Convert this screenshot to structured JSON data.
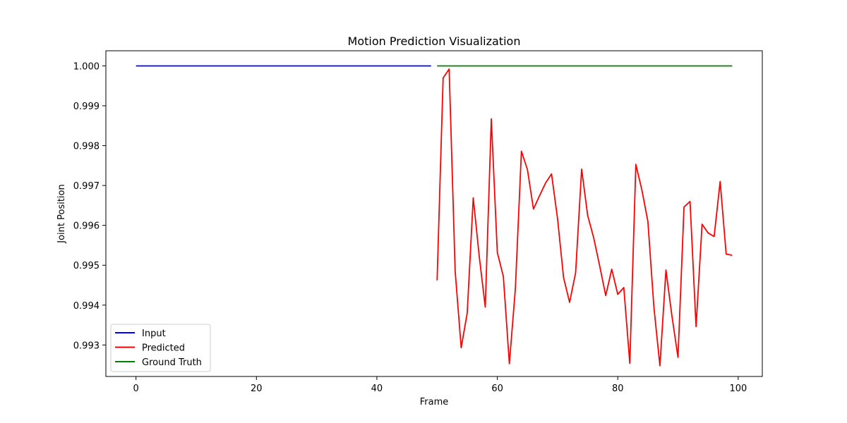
{
  "chart_data": {
    "type": "line",
    "title": "Motion Prediction Visualization",
    "xlabel": "Frame",
    "ylabel": "Joint Position",
    "xlim": [
      -5,
      104
    ],
    "ylim": [
      0.99221,
      1.00038
    ],
    "xticks": [
      0,
      20,
      40,
      60,
      80,
      100
    ],
    "xtick_labels": [
      "0",
      "20",
      "40",
      "60",
      "80",
      "100"
    ],
    "yticks": [
      0.993,
      0.994,
      0.995,
      0.996,
      0.997,
      0.998,
      0.999,
      1.0
    ],
    "ytick_labels": [
      "0.993",
      "0.994",
      "0.995",
      "0.996",
      "0.997",
      "0.998",
      "0.999",
      "1.000"
    ],
    "grid": false,
    "legend": "lower-left",
    "series": [
      {
        "name": "Input",
        "color": "#0000ff",
        "x": [
          0,
          49
        ],
        "y": [
          1.0,
          1.0
        ]
      },
      {
        "name": "Predicted",
        "color": "#ff0000",
        "x": [
          50,
          51,
          52,
          53,
          54,
          55,
          56,
          57,
          58,
          59,
          60,
          61,
          62,
          63,
          64,
          65,
          66,
          67,
          68,
          69,
          70,
          71,
          72,
          73,
          74,
          75,
          76,
          77,
          78,
          79,
          80,
          81,
          82,
          83,
          84,
          85,
          86,
          87,
          88,
          89,
          90,
          91,
          92,
          93,
          94,
          95,
          96,
          97,
          98,
          99
        ],
        "y": [
          0.99462,
          0.9997,
          0.99992,
          0.99485,
          0.99293,
          0.9938,
          0.99669,
          0.99522,
          0.99395,
          0.99867,
          0.99532,
          0.99472,
          0.99253,
          0.99442,
          0.99786,
          0.9974,
          0.99641,
          0.99674,
          0.99706,
          0.99729,
          0.99617,
          0.99469,
          0.99407,
          0.99481,
          0.99741,
          0.99625,
          0.99569,
          0.99498,
          0.99424,
          0.9949,
          0.99427,
          0.99444,
          0.99254,
          0.99753,
          0.99689,
          0.9961,
          0.99395,
          0.99248,
          0.99488,
          0.99372,
          0.99269,
          0.99646,
          0.9966,
          0.99346,
          0.99603,
          0.99581,
          0.99572,
          0.9971,
          0.99528,
          0.99525
        ]
      },
      {
        "name": "Ground Truth",
        "color": "#008000",
        "x": [
          50,
          99
        ],
        "y": [
          1.0,
          1.0
        ]
      }
    ]
  }
}
